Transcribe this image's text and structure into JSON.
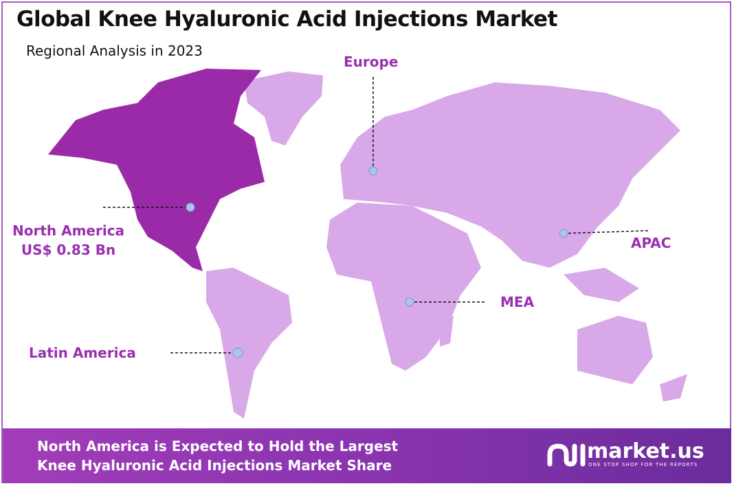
{
  "header": {
    "title": "Global Knee Hyaluronic Acid Injections Market",
    "subtitle": "Regional Analysis in 2023"
  },
  "regions": [
    {
      "name": "North America",
      "value": "US$ 0.83 Bn",
      "highlighted": true
    },
    {
      "name": "Europe"
    },
    {
      "name": "APAC"
    },
    {
      "name": "MEA"
    },
    {
      "name": "Latin America"
    }
  ],
  "colors": {
    "highlight": "#9b2aa8",
    "land": "#d9a8e8",
    "label": "#9a2fb0",
    "marker": "#a9c4ee"
  },
  "footer": {
    "line1": "North America is Expected to Hold the Largest",
    "line2": "Knee Hyaluronic Acid Injections Market Share",
    "logo_text": "market.us",
    "logo_tagline": "ONE STOP SHOP FOR THE REPORTS"
  }
}
